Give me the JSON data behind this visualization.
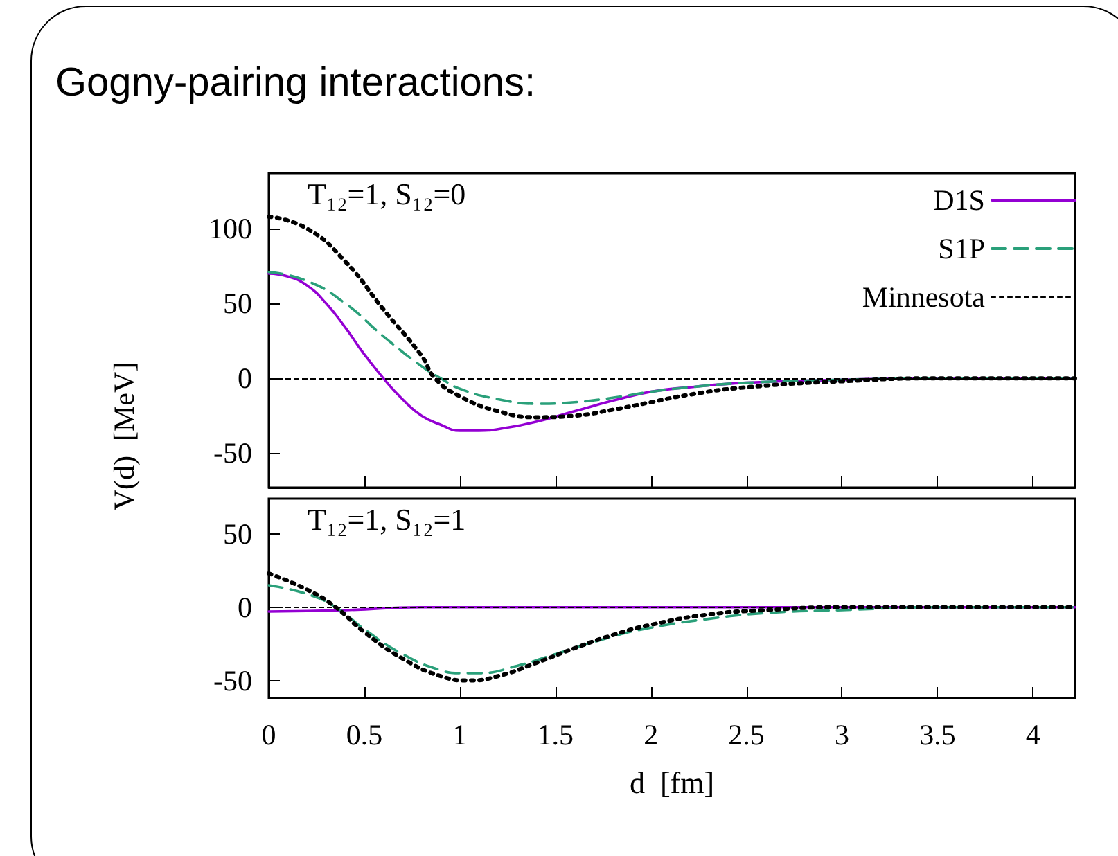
{
  "chart_data": [
    {
      "type": "line",
      "title": "Gogny-pairing interactions:",
      "ylabel": "V(d)  [MeV]",
      "annotations": [
        "T₁₂=1, S₁₂=0"
      ],
      "xlim": [
        0,
        4.22
      ],
      "xticks": [
        0,
        0.5,
        1,
        1.5,
        2,
        2.5,
        3,
        3.5,
        4
      ],
      "ylim": [
        -73,
        137
      ],
      "yticks": [
        -50,
        0,
        50,
        100
      ],
      "tick_labels": "y",
      "legend": "top right",
      "grid": false,
      "ref_lines": [
        {
          "axis": "y",
          "value": 0,
          "color": "#000000",
          "line_style": "dashed"
        }
      ],
      "series": [
        {
          "name": "D1S",
          "color": "#9400d3",
          "line_style": "solid",
          "x": [
            0,
            0.1,
            0.2,
            0.3,
            0.4,
            0.5,
            0.6,
            0.7,
            0.8,
            0.9,
            1.0,
            1.1,
            1.2,
            1.4,
            1.6,
            1.8,
            2.0,
            2.2,
            2.5,
            3.0,
            3.5,
            4.22
          ],
          "values": [
            70,
            68,
            62,
            50,
            34,
            16,
            0,
            -14,
            -25,
            -31,
            -35,
            -35,
            -34,
            -29,
            -22,
            -15,
            -9,
            -6,
            -3,
            -1,
            0,
            0
          ]
        },
        {
          "name": "S1P",
          "color": "#2aa07a",
          "line_style": "dashed",
          "x": [
            0,
            0.2,
            0.4,
            0.6,
            0.8,
            0.9,
            1.0,
            1.2,
            1.4,
            1.6,
            1.8,
            2.0,
            2.2,
            2.5,
            3.0,
            3.5,
            4.22
          ],
          "values": [
            71,
            65,
            50,
            28,
            8,
            0,
            -7,
            -14,
            -17,
            -16,
            -13,
            -9,
            -6,
            -3,
            -1,
            0,
            0
          ]
        },
        {
          "name": "Minnesota",
          "color": "#000000",
          "line_style": "dotted",
          "x": [
            0,
            0.2,
            0.4,
            0.6,
            0.8,
            0.87,
            1.0,
            1.2,
            1.4,
            1.6,
            1.8,
            2.0,
            2.2,
            2.5,
            3.0,
            3.5,
            4.22
          ],
          "values": [
            108,
            100,
            78,
            46,
            15,
            0,
            -12,
            -22,
            -26,
            -25,
            -21,
            -16,
            -11,
            -6,
            -2,
            0,
            0
          ]
        }
      ]
    },
    {
      "type": "line",
      "xlabel": "d  [fm]",
      "annotations": [
        "T₁₂=1, S₁₂=1"
      ],
      "xlim": [
        0,
        4.22
      ],
      "xticks": [
        0,
        0.5,
        1,
        1.5,
        2,
        2.5,
        3,
        3.5,
        4
      ],
      "ylim": [
        -62,
        74
      ],
      "yticks": [
        -50,
        0,
        50
      ],
      "grid": false,
      "ref_lines": [
        {
          "axis": "y",
          "value": 0,
          "color": "#000000",
          "line_style": "dashed"
        }
      ],
      "series": [
        {
          "color": "#9400d3",
          "line_style": "solid",
          "x": [
            0,
            0.4,
            0.8,
            1.5,
            4.22
          ],
          "values": [
            -3,
            -2,
            0,
            0,
            0
          ]
        },
        {
          "color": "#2aa07a",
          "line_style": "dashed",
          "x": [
            0,
            0.2,
            0.35,
            0.5,
            0.7,
            0.9,
            1.0,
            1.1,
            1.3,
            1.5,
            1.8,
            2.0,
            2.3,
            2.6,
            3.0,
            3.5,
            4.22
          ],
          "values": [
            15,
            9,
            0,
            -15,
            -32,
            -43,
            -45,
            -45,
            -40,
            -32,
            -20,
            -14,
            -8,
            -4,
            -2,
            0,
            0
          ]
        },
        {
          "color": "#000000",
          "line_style": "dotted",
          "x": [
            0,
            0.2,
            0.35,
            0.5,
            0.7,
            0.9,
            1.05,
            1.2,
            1.4,
            1.6,
            1.8,
            2.0,
            2.3,
            2.6,
            3.0,
            3.5,
            4.22
          ],
          "values": [
            23,
            12,
            0,
            -17,
            -35,
            -47,
            -50,
            -47,
            -38,
            -28,
            -19,
            -12,
            -5,
            -2,
            0,
            0,
            0
          ]
        }
      ]
    }
  ]
}
